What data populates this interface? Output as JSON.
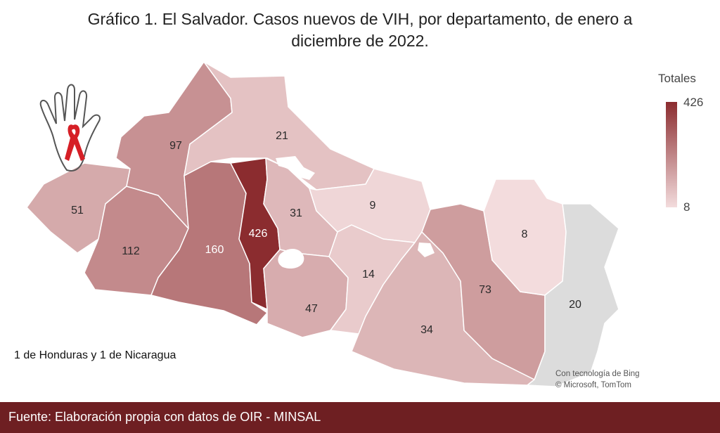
{
  "title": {
    "line1": "Gráfico 1. El Salvador. Casos nuevos de VIH, por departamento, de enero a",
    "line2": "diciembre de 2022."
  },
  "legend": {
    "title": "Totales",
    "max": "426",
    "min": "8",
    "color_max": "#8b2c2f",
    "color_min": "#f3dcdd"
  },
  "note": "1 de Honduras y 1 de Nicaragua",
  "credit": {
    "line1": "Con tecnología de Bing",
    "line2": "© Microsoft, TomTom"
  },
  "footer": "Fuente: Elaboración propia con datos de OIR - MINSAL",
  "map_data": {
    "type": "choropleth",
    "color_range": [
      8,
      426
    ],
    "regions": [
      {
        "value": 51,
        "label": "51"
      },
      {
        "value": 112,
        "label": "112"
      },
      {
        "value": 97,
        "label": "97"
      },
      {
        "value": 21,
        "label": "21"
      },
      {
        "value": 160,
        "label": "160"
      },
      {
        "value": 426,
        "label": "426"
      },
      {
        "value": 31,
        "label": "31"
      },
      {
        "value": 9,
        "label": "9"
      },
      {
        "value": 47,
        "label": "47"
      },
      {
        "value": 14,
        "label": "14"
      },
      {
        "value": 34,
        "label": "34"
      },
      {
        "value": 73,
        "label": "73"
      },
      {
        "value": 8,
        "label": "8"
      },
      {
        "value": 20,
        "label": "20",
        "no_data_color": "#dcdcdc"
      }
    ]
  }
}
